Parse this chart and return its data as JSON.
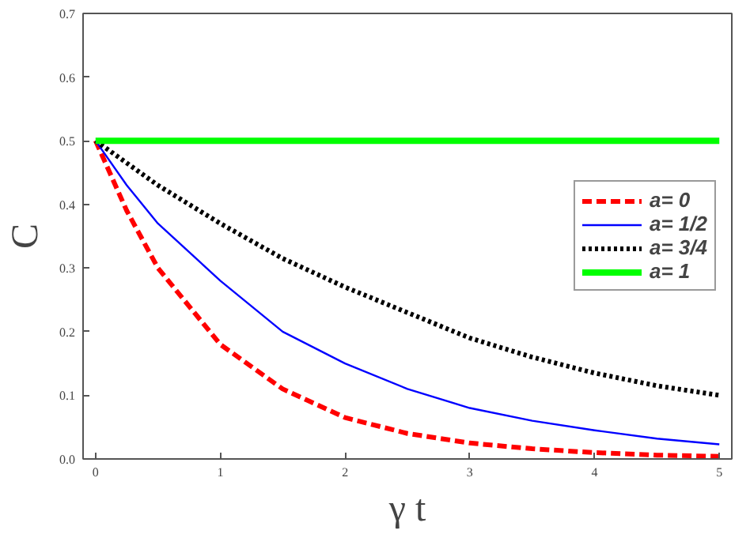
{
  "chart_data": {
    "type": "line",
    "xlabel": "γ t",
    "ylabel": "C",
    "x": [
      0,
      0.25,
      0.5,
      1,
      1.5,
      2,
      2.5,
      3,
      3.5,
      4,
      4.5,
      5
    ],
    "series": [
      {
        "name": "a= 0",
        "color": "#ff0000",
        "line_style": "dashed",
        "values": [
          0.5,
          0.39,
          0.3,
          0.18,
          0.11,
          0.065,
          0.04,
          0.025,
          0.016,
          0.01,
          0.006,
          0.004
        ]
      },
      {
        "name": "a= 1/2",
        "color": "#0000ff",
        "line_style": "solid",
        "values": [
          0.5,
          0.43,
          0.37,
          0.28,
          0.2,
          0.15,
          0.11,
          0.08,
          0.06,
          0.045,
          0.032,
          0.023
        ]
      },
      {
        "name": "a= 3/4",
        "color": "#000000",
        "line_style": "dotted",
        "values": [
          0.5,
          0.465,
          0.43,
          0.37,
          0.315,
          0.27,
          0.23,
          0.19,
          0.16,
          0.135,
          0.115,
          0.1
        ]
      },
      {
        "name": "a= 1",
        "color": "#00ff00",
        "line_style": "solid",
        "values": [
          0.5,
          0.5,
          0.5,
          0.5,
          0.5,
          0.5,
          0.5,
          0.5,
          0.5,
          0.5,
          0.5,
          0.5
        ]
      }
    ],
    "xlim": [
      -0.1,
      5.1
    ],
    "ylim": [
      0,
      0.7
    ],
    "xticks": [
      0,
      1,
      2,
      3,
      4,
      5
    ],
    "yticks": [
      {
        "value": 0,
        "label": "0.0"
      },
      0.1,
      0.2,
      0.3,
      0.4,
      0.5,
      0.6,
      0.7
    ],
    "grid": false,
    "legend": "right",
    "marker": "none"
  }
}
